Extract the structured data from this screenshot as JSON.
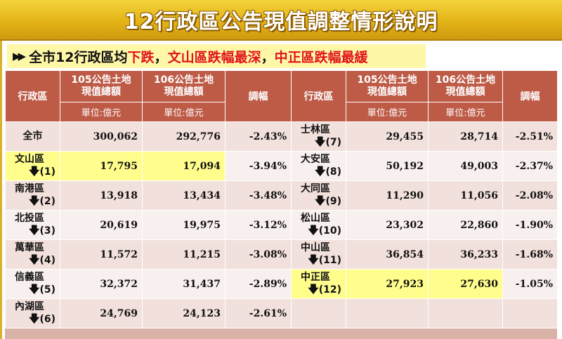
{
  "title": "12行政區公告現值調整情形說明",
  "subtitle": {
    "bullet": "▶▶",
    "prefix": "全市12行政區均",
    "highlight1": "下跌",
    "mid1": "，",
    "highlight2": "文山區跌幅最深",
    "mid2": "，",
    "highlight3": "中正區跌幅最緩"
  },
  "headers": {
    "district": "行政區",
    "col105_line1": "105公告土地",
    "col105_line2": "現值總額",
    "col106_line1": "106公告土地",
    "col106_line2": "現值總額",
    "change": "調幅",
    "unit": "單位:億元"
  },
  "rows_left": [
    {
      "name": "全市",
      "rank": "",
      "v105": "300,062",
      "v106": "292,776",
      "pct": "-2.43%"
    },
    {
      "name": "文山區",
      "rank": "(1)",
      "v105": "17,795",
      "v106": "17,094",
      "pct": "-3.94%"
    },
    {
      "name": "南港區",
      "rank": "(2)",
      "v105": "13,918",
      "v106": "13,434",
      "pct": "-3.48%"
    },
    {
      "name": "北投區",
      "rank": "(3)",
      "v105": "20,619",
      "v106": "19,975",
      "pct": "-3.12%"
    },
    {
      "name": "萬華區",
      "rank": "(4)",
      "v105": "11,572",
      "v106": "11,215",
      "pct": "-3.08%"
    },
    {
      "name": "信義區",
      "rank": "(5)",
      "v105": "32,372",
      "v106": "31,437",
      "pct": "-2.89%"
    },
    {
      "name": "內湖區",
      "rank": "(6)",
      "v105": "24,769",
      "v106": "24,123",
      "pct": "-2.61%"
    }
  ],
  "rows_right": [
    {
      "name": "士林區",
      "rank": "(7)",
      "v105": "29,455",
      "v106": "28,714",
      "pct": "-2.51%"
    },
    {
      "name": "大安區",
      "rank": "(8)",
      "v105": "50,192",
      "v106": "49,003",
      "pct": "-2.37%"
    },
    {
      "name": "大同區",
      "rank": "(9)",
      "v105": "11,290",
      "v106": "11,056",
      "pct": "-2.08%"
    },
    {
      "name": "松山區",
      "rank": "(10)",
      "v105": "23,302",
      "v106": "22,860",
      "pct": "-1.90%"
    },
    {
      "name": "中山區",
      "rank": "(11)",
      "v105": "36,854",
      "v106": "36,233",
      "pct": "-1.68%"
    },
    {
      "name": "中正區",
      "rank": "(12)",
      "v105": "27,923",
      "v106": "27,630",
      "pct": "-1.05%"
    },
    {
      "name": "",
      "rank": "",
      "v105": "",
      "v106": "",
      "pct": ""
    }
  ],
  "down_arrow": "🡇",
  "colors": {
    "header_bg": "#bd5b47",
    "highlight_row": "#fffd8c",
    "district_text": "#1f8a1f",
    "red_text": "#e0131a",
    "title_gold": "#e3b417"
  }
}
